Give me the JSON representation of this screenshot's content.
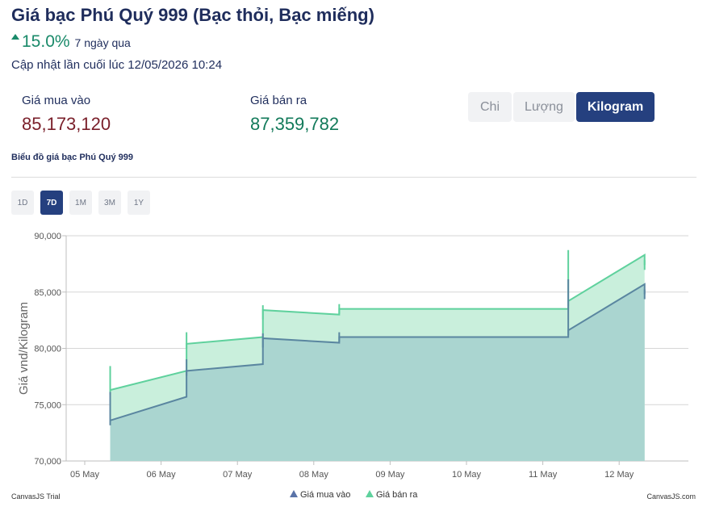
{
  "header": {
    "title": "Giá bạc Phú Quý 999 (Bạc thỏi, Bạc miếng)",
    "change_percent": "15.0%",
    "change_period": "7 ngày qua",
    "last_updated": "Cập nhật lần cuối lúc 12/05/2026 10:24"
  },
  "prices": {
    "buy_label": "Giá mua vào",
    "buy_value": "85,173,120",
    "sell_label": "Giá bán ra",
    "sell_value": "87,359,782"
  },
  "units": [
    {
      "label": "Chi",
      "active": false
    },
    {
      "label": "Lượng",
      "active": false
    },
    {
      "label": "Kilogram",
      "active": true
    }
  ],
  "chart_section_title": "Biểu đồ giá bạc Phú Quý 999",
  "ranges": [
    {
      "label": "1D",
      "active": false
    },
    {
      "label": "7D",
      "active": true
    },
    {
      "label": "1M",
      "active": false
    },
    {
      "label": "3M",
      "active": false
    },
    {
      "label": "1Y",
      "active": false
    }
  ],
  "colors": {
    "up": "#1a8a6a",
    "buy_line": "#5a86a0",
    "buy_fill": "#a9d3cf",
    "sell_line": "#5fd19d",
    "sell_fill": "#c9efdc",
    "accent": "#25407f"
  },
  "chart_data": {
    "type": "area",
    "step": true,
    "ylabel": "Giá vnd/Kilogram",
    "ylim": [
      70000,
      90000
    ],
    "yticks": [
      "70,000",
      "75,000",
      "80,000",
      "85,000",
      "90,000"
    ],
    "x_tick_labels": [
      "05 May",
      "06 May",
      "07 May",
      "08 May",
      "09 May",
      "10 May",
      "11 May",
      "12 May"
    ],
    "grid": true,
    "legend_position": "bottom",
    "series": [
      {
        "name": "Giá mua vào",
        "points": [
          {
            "x": "05/05 08:00",
            "open": 73600,
            "close": 75700
          },
          {
            "x": "06/05 08:00",
            "open": 78000,
            "close": 78600
          },
          {
            "x": "07/05 08:00",
            "open": 80900,
            "close": 80500
          },
          {
            "x": "08/05 08:00",
            "open": 81000,
            "close": 81000
          },
          {
            "x": "11/05 08:00",
            "open": 81600,
            "close": 85700
          },
          {
            "x": "12/05 08:00",
            "open": 84800,
            "close": 84800
          }
        ]
      },
      {
        "name": "Giá bán ra",
        "points": [
          {
            "x": "05/05 08:00",
            "open": 76300,
            "close": 78000
          },
          {
            "x": "06/05 08:00",
            "open": 80400,
            "close": 81000
          },
          {
            "x": "07/05 08:00",
            "open": 83400,
            "close": 83000
          },
          {
            "x": "08/05 08:00",
            "open": 83500,
            "close": 83500
          },
          {
            "x": "11/05 08:00",
            "open": 84200,
            "close": 88300
          },
          {
            "x": "12/05 08:00",
            "open": 87400,
            "close": 87400
          }
        ]
      }
    ]
  },
  "footer": {
    "left": "CanvasJS Trial",
    "right": "CanvasJS.com"
  }
}
